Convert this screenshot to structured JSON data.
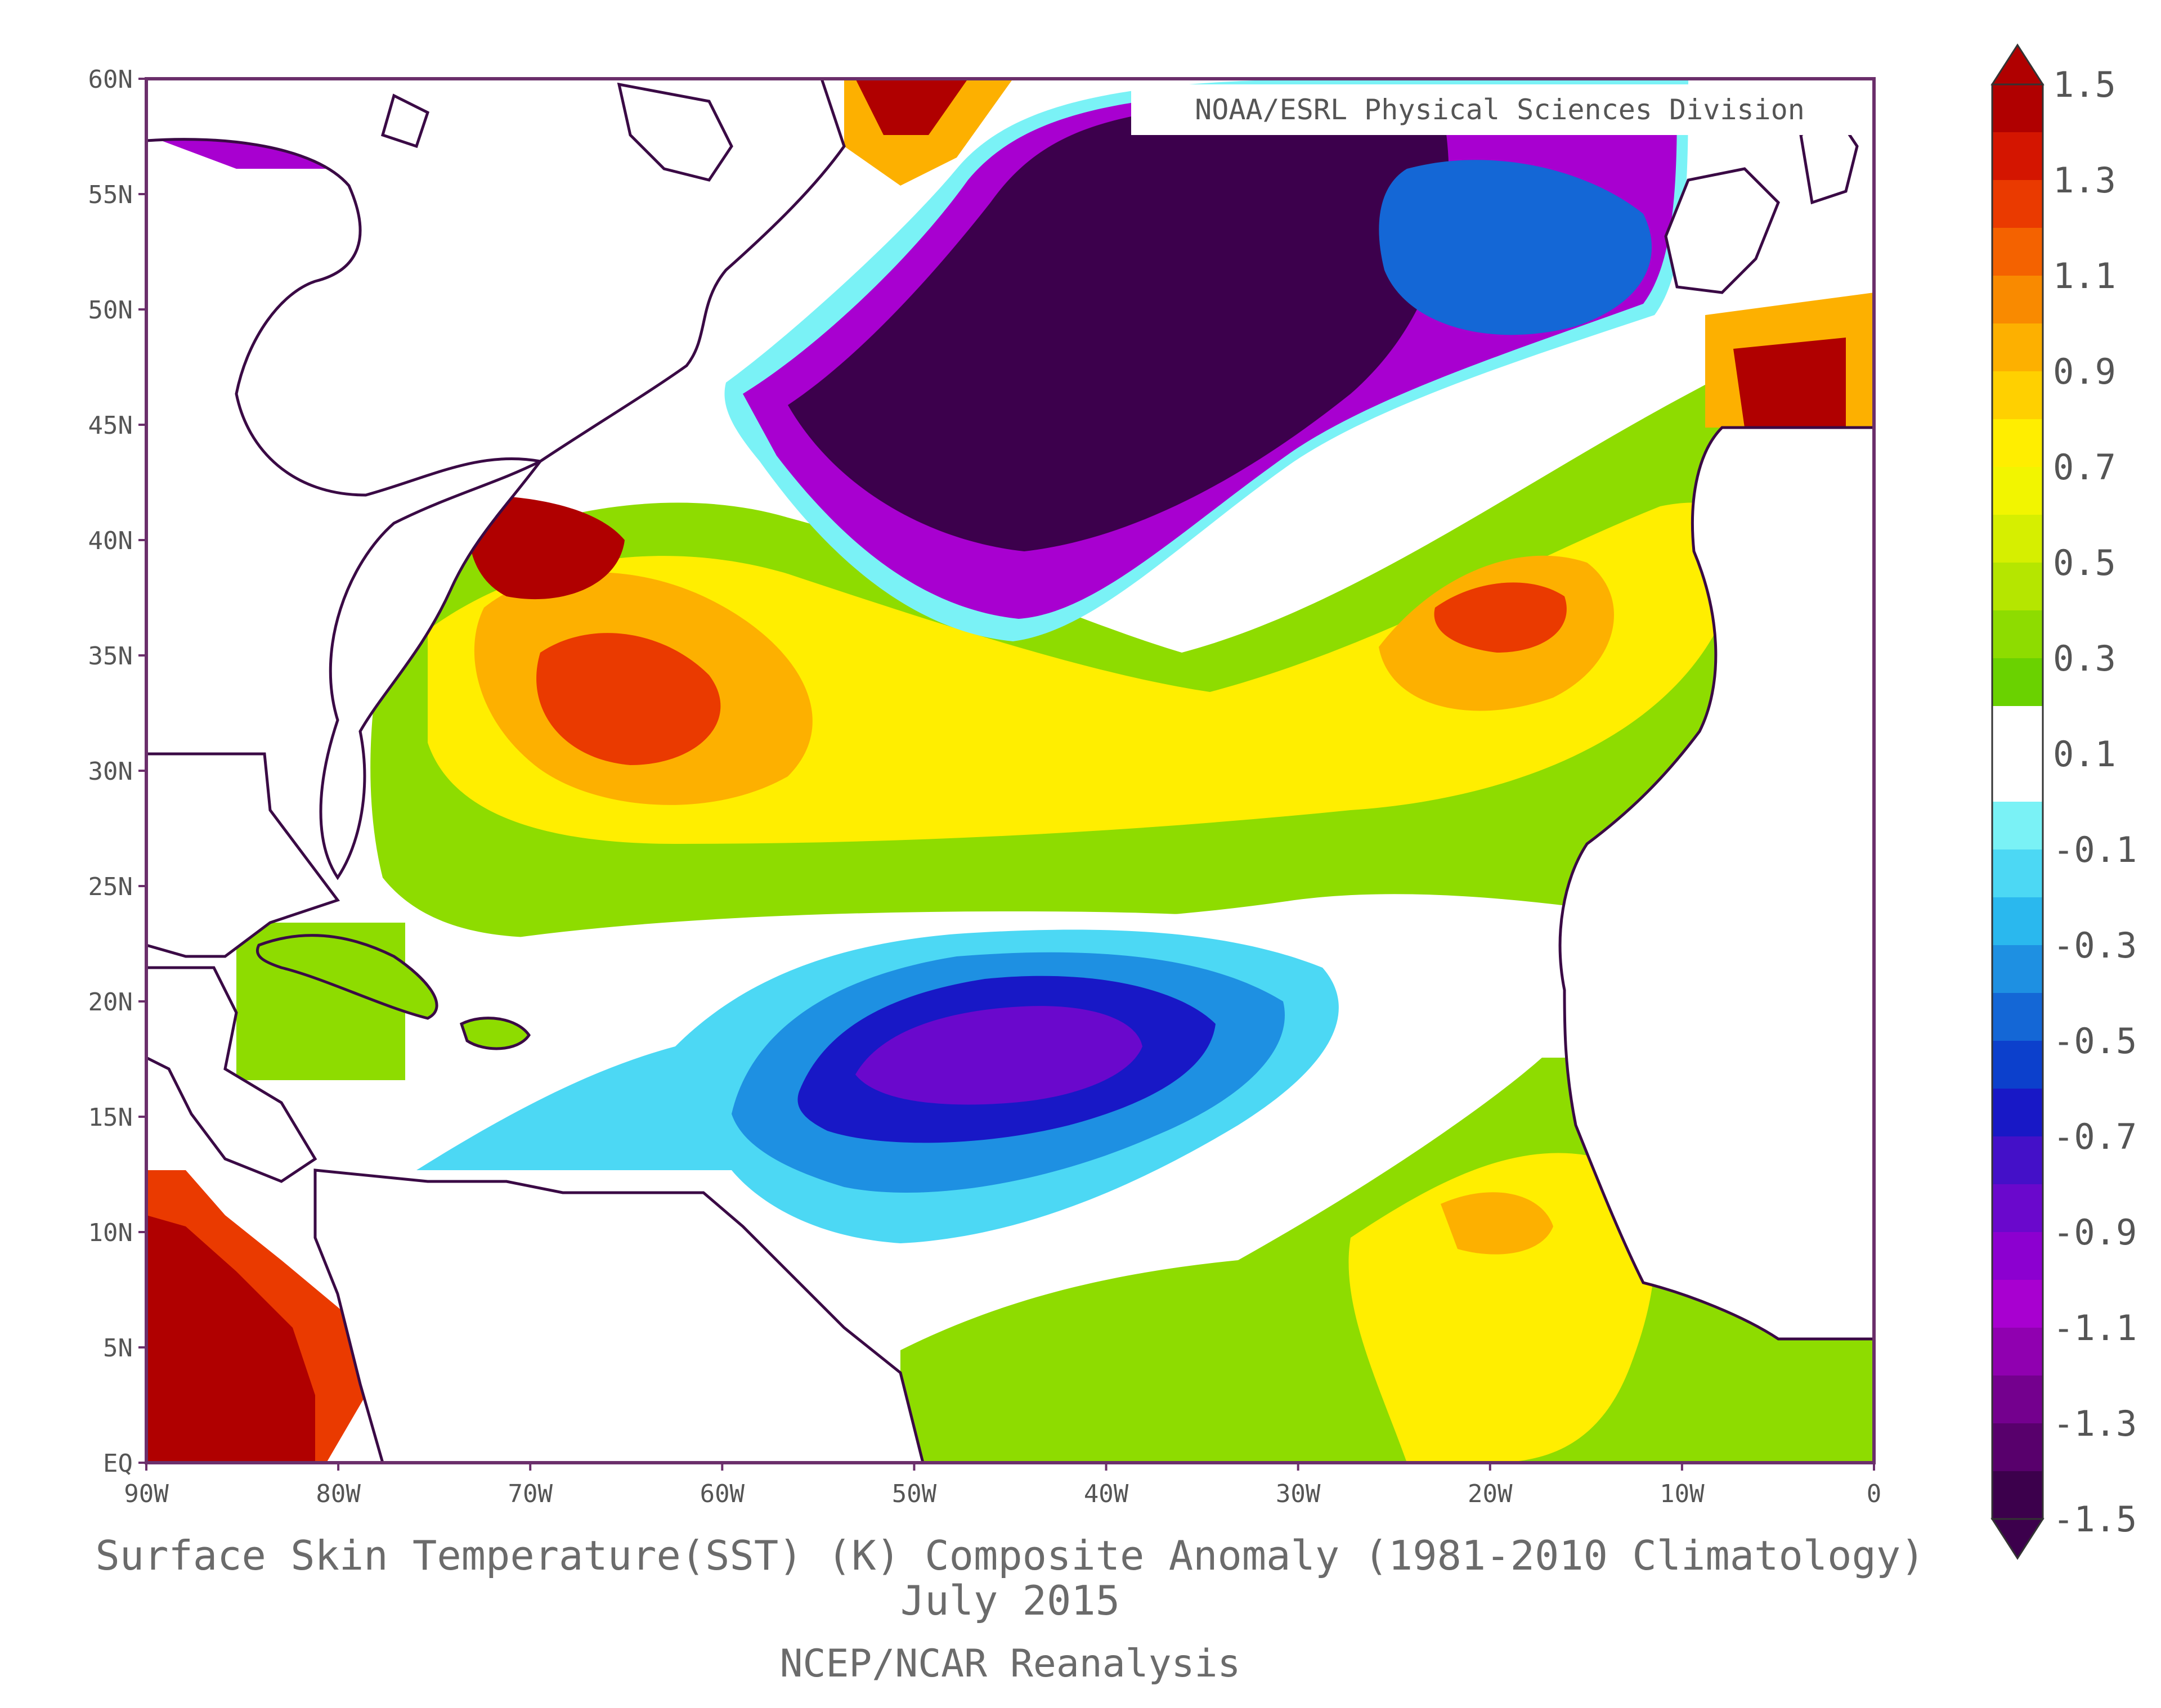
{
  "map": {
    "type": "contour_anomaly_map",
    "region": "North Atlantic",
    "lat_ticks": [
      "60N",
      "55N",
      "50N",
      "45N",
      "40N",
      "35N",
      "30N",
      "25N",
      "20N",
      "15N",
      "10N",
      "5N",
      "EQ"
    ],
    "lon_ticks": [
      "90W",
      "80W",
      "70W",
      "60W",
      "50W",
      "40W",
      "30W",
      "20W",
      "10W",
      "0"
    ],
    "lat_range": [
      0,
      60
    ],
    "lon_range": [
      -90,
      0
    ],
    "credit": "NOAA/ESRL Physical Sciences Division",
    "caption_line1": "Surface Skin Temperature(SST) (K) Composite Anomaly (1981-2010 Climatology)",
    "caption_line2": "July 2015",
    "caption_line3": "NCEP/NCAR Reanalysis"
  },
  "colorbar": {
    "labels": [
      "1.5",
      "1.3",
      "1.1",
      "0.9",
      "0.7",
      "0.5",
      "0.3",
      "0.1",
      "-0.1",
      "-0.3",
      "-0.5",
      "-0.7",
      "-0.9",
      "-1.1",
      "-1.3",
      "-1.5"
    ],
    "colors": [
      "#b00000",
      "#d41500",
      "#ea3a00",
      "#f46200",
      "#f98a00",
      "#fdb000",
      "#ffd000",
      "#ffee00",
      "#f2f500",
      "#d6ef00",
      "#b5e600",
      "#8edc00",
      "#6ad200",
      "#ffffff",
      "#ffffff",
      "#7af2f6",
      "#4cd8f4",
      "#2ab8ee",
      "#1e90e2",
      "#1467d6",
      "#0c40cc",
      "#1818c6",
      "#4410c8",
      "#6a08cc",
      "#8c00d0",
      "#a800d0",
      "#9000b0",
      "#74008e",
      "#58006c",
      "#3c004c"
    ]
  },
  "regions": [
    {
      "name": "subpolar-cold-anomaly",
      "level": "-1.5",
      "color": "#3c004c"
    },
    {
      "name": "tropical-cold-anomaly",
      "level": "-0.9",
      "color": "#4410c8"
    },
    {
      "name": "us-east-coast-warm-anomaly",
      "level": "1.5",
      "color": "#b00000"
    },
    {
      "name": "eastern-atlantic-warm-anomaly",
      "level": "1.1",
      "color": "#ea3a00"
    },
    {
      "name": "pacific-warm-anomaly",
      "level": "1.5",
      "color": "#b00000"
    }
  ]
}
